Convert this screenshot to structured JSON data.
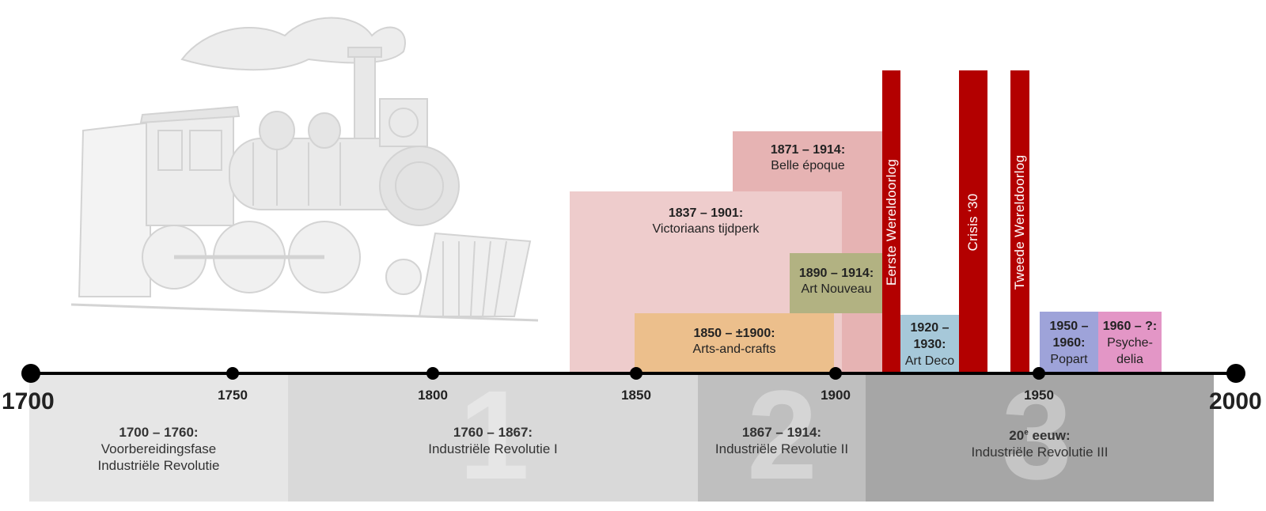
{
  "axis": {
    "start_label": "1700",
    "end_label": "2000",
    "ticks": [
      "1750",
      "1800",
      "1850",
      "1900",
      "1950"
    ]
  },
  "eras": [
    {
      "num": "",
      "years": "1700 – 1760:",
      "name": "Voorbereidingsfase",
      "name2": "Industriële Revolutie",
      "color": "#e6e6e6"
    },
    {
      "num": "1",
      "years": "1760 – 1867:",
      "name": "Industriële Revolutie I",
      "color": "#d9d9d9"
    },
    {
      "num": "2",
      "years": "1867 – 1914:",
      "name": "Industriële Revolutie II",
      "color": "#bfbfbf"
    },
    {
      "num": "3",
      "years_main": "20",
      "years_sup": "e",
      "years_rest": " eeuw:",
      "name": "Industriële Revolutie III",
      "color": "#a6a6a6"
    }
  ],
  "periods": {
    "belle": {
      "years": "1871 – 1914:",
      "name": "Belle époque",
      "color": "#e6b3b3"
    },
    "victoria": {
      "years": "1837 – 1901:",
      "name": "Victoriaans tijdperk",
      "color": "#eecccc"
    },
    "nouveau": {
      "years": "1890 – 1914:",
      "name": "Art Nouveau",
      "color": "#b2b282"
    },
    "crafts": {
      "years": "1850 – ±1900:",
      "name": "Arts-and-crafts",
      "color": "#ecbf8c"
    },
    "deco": {
      "years1": "1920 –",
      "years2": "1930:",
      "name": "Art Deco",
      "color": "#a6c8d9"
    },
    "popart": {
      "years1": "1950 –",
      "years2": "1960:",
      "name": "Popart",
      "color": "#9ea3d9"
    },
    "psych": {
      "years1": "1960 – ?:",
      "name1": "Psyche-",
      "name2": "delia",
      "color": "#e396c6"
    }
  },
  "wars": {
    "ww1": "Eerste Wereldoorlog",
    "crisis": "Crisis ‘30",
    "ww2": "Tweede Wereldoorlog",
    "color": "#b30000"
  },
  "illustration": {
    "icon": "steam-locomotive-icon"
  }
}
